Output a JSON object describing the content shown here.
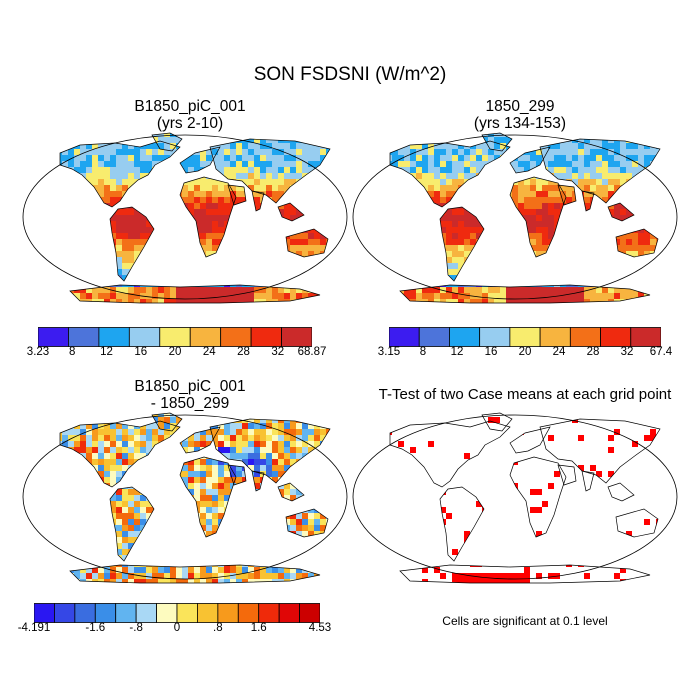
{
  "title": "SON FSDSNI (W/m^2)",
  "panels": [
    {
      "title_line1": "B1850_piC_001",
      "title_line2": "(yrs 2-10)",
      "colorbar": {
        "labels": [
          "3.23",
          "8",
          "12",
          "16",
          "20",
          "24",
          "28",
          "32",
          "68.87"
        ],
        "colors": [
          "#3c1cf0",
          "#4d74da",
          "#1ea5f0",
          "#97cdf0",
          "#f8ec6e",
          "#f7b43f",
          "#f37018",
          "#ef2a0f",
          "#cb2a2a"
        ]
      }
    },
    {
      "title_line1": "1850_299",
      "title_line2": "(yrs 134-153)",
      "colorbar": {
        "labels": [
          "3.15",
          "8",
          "12",
          "16",
          "20",
          "24",
          "28",
          "32",
          "67.4"
        ],
        "colors": [
          "#3c1cf0",
          "#4d74da",
          "#1ea5f0",
          "#97cdf0",
          "#f8ec6e",
          "#f7b43f",
          "#f37018",
          "#ef2a0f",
          "#cb2a2a"
        ]
      }
    },
    {
      "title_line1": "B1850_piC_001",
      "title_line2": "- 1850_299",
      "colorbar": {
        "labels": [
          "-4.191",
          "-1.6",
          "-.8",
          "0",
          ".8",
          "1.6",
          "4.53"
        ],
        "colors": [
          "#2a17f2",
          "#3547e6",
          "#3a6de0",
          "#3a8ee8",
          "#61b4f0",
          "#a9d8f5",
          "#fdfbbf",
          "#fae45a",
          "#f8c232",
          "#f79a1c",
          "#f46a0c",
          "#ef2a0a",
          "#e00606",
          "#cc0000"
        ]
      }
    },
    {
      "title_line1": "T-Test of two Case means at each grid point",
      "note": "Cells are significant at 0.1 level",
      "color": "#ff0000"
    }
  ]
}
